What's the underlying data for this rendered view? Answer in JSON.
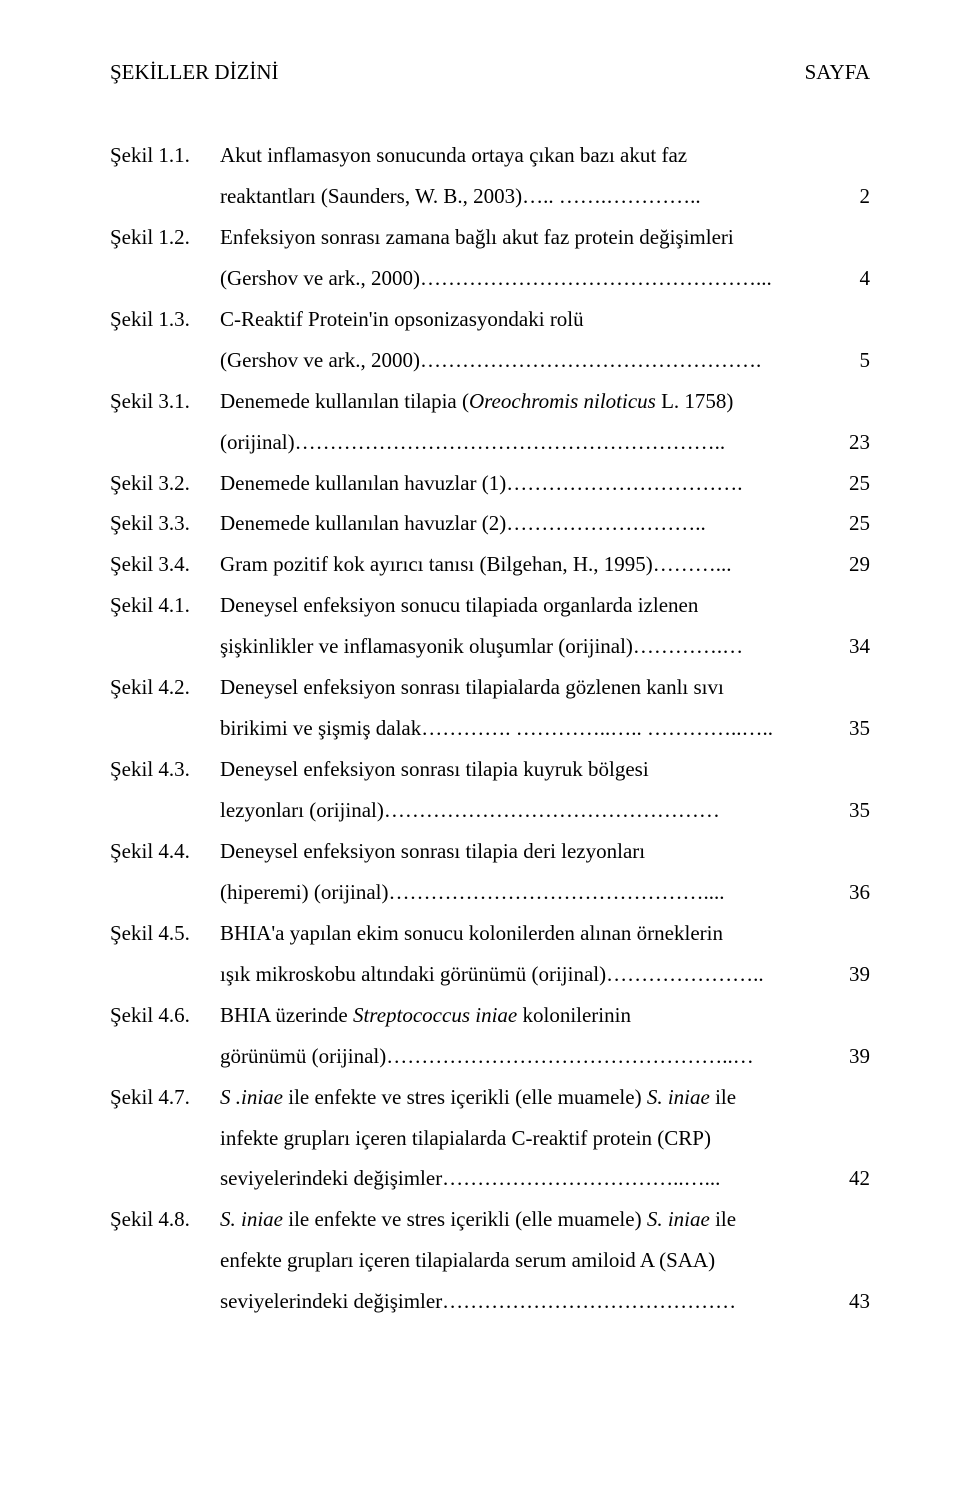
{
  "header": {
    "left": "ŞEKİLLER DİZİNİ",
    "right": "SAYFA"
  },
  "entries": [
    {
      "label": "Şekil 1.1.",
      "lines": [
        {
          "text": "Akut inflamasyon sonucunda ortaya çıkan bazı akut faz",
          "leader": false,
          "page": ""
        },
        {
          "text": "reaktantları (Saunders, W. B., 2003)….. …….…………..",
          "leader": true,
          "leaderCls": "leader-sm",
          "page": "2"
        }
      ]
    },
    {
      "label": "Şekil 1.2.",
      "lines": [
        {
          "text": "Enfeksiyon sonrası zamana bağlı akut faz protein değişimleri",
          "leader": false,
          "page": ""
        },
        {
          "text": "(Gershov ve ark., 2000)…………………………………………...",
          "leader": true,
          "leaderCls": "leader-sm",
          "page": "4"
        }
      ]
    },
    {
      "label": "Şekil 1.3.",
      "lines": [
        {
          "text": "C-Reaktif Protein'in opsonizasyondaki rolü",
          "leader": false,
          "page": ""
        },
        {
          "text": "(Gershov  ve ark., 2000)………………………………………….",
          "leader": true,
          "leaderCls": "leader-sm",
          "page": "5"
        }
      ]
    },
    {
      "label": "Şekil 3.1.",
      "lines": [
        {
          "text_pre": "Denemede kullanılan tilapia (",
          "text_italic": "Oreochromis niloticus",
          "text_post": " L. 1758)",
          "leader": false,
          "page": ""
        },
        {
          "text": "(orijinal)……………………………………………………..",
          "leader": true,
          "page": "23"
        }
      ]
    },
    {
      "label": "Şekil 3.2.",
      "lines": [
        {
          "text": "Denemede kullanılan havuzlar (1)…………………………….",
          "leader": true,
          "page": "25"
        }
      ]
    },
    {
      "label": "Şekil 3.3.",
      "lines": [
        {
          "text": " Denemede kullanılan havuzlar (2)………………………..",
          "leader": true,
          "page": "25"
        }
      ]
    },
    {
      "label": "Şekil 3.4.",
      "lines": [
        {
          "text": " Gram pozitif kok ayırıcı tanısı (Bilgehan, H., 1995)………...",
          "leader": true,
          "page": "29"
        }
      ]
    },
    {
      "label": "Şekil 4.1.",
      "lines": [
        {
          "text": "Deneysel enfeksiyon sonucu tilapiada organlarda izlenen",
          "leader": false,
          "page": ""
        },
        {
          "text": "şişkinlikler ve inflamasyonik oluşumlar (orijinal)………….…",
          "leader": true,
          "leaderCls": "leader-sm",
          "page": "34"
        }
      ]
    },
    {
      "label": "Şekil  4.2.",
      "lines": [
        {
          "text": " Deneysel enfeksiyon sonrası tilapialarda gözlenen kanlı sıvı",
          "leader": false,
          "page": ""
        },
        {
          "text": "birikimi ve şişmiş dalak…………. …………..….. …………..…..",
          "leader": true,
          "leaderCls": "leader-sm",
          "page": "35"
        }
      ]
    },
    {
      "label": "Şekil  4.3.",
      "lines": [
        {
          "text": "Deneysel enfeksiyon sonrası tilapia kuyruk bölgesi",
          "leader": false,
          "page": ""
        },
        {
          "text": "lezyonları (orijinal)…………………………………………",
          "leader": true,
          "page": "35"
        }
      ]
    },
    {
      "label": "Şekil  4.4.",
      "lines": [
        {
          "text": "Deneysel enfeksiyon sonrası tilapia deri lezyonları",
          "leader": false,
          "page": ""
        },
        {
          "text": "(hiperemi)  (orijinal)………………………………………....",
          "leader": true,
          "page": "36"
        }
      ]
    },
    {
      "label": "Şekil  4.5.",
      "lines": [
        {
          "text": "BHIA'a yapılan ekim sonucu kolonilerden alınan örneklerin",
          "leader": false,
          "page": ""
        },
        {
          "text": "ışık mikroskobu altındaki görünümü (orijinal)…………………..",
          "leader": true,
          "leaderCls": "leader-sm",
          "page": "39"
        }
      ]
    },
    {
      "label": "Şekil  4.6.",
      "lines": [
        {
          "text_pre": "BHIA üzerinde ",
          "text_italic": "Streptococcus iniae",
          "text_post": " kolonilerinin",
          "leader": false,
          "page": ""
        },
        {
          "text": "görünümü (orijinal)…………………………………………..…",
          "leader": true,
          "leaderCls": "leader-sm",
          "page": "39"
        }
      ]
    },
    {
      "label": "Şekil  4.7.",
      "lines": [
        {
          "text_pre": " ",
          "text_italic": "S .iniae",
          "text_post_mix": " ile enfekte ve stres içerikli (elle muamele) ",
          "text_italic2": "S. iniae",
          "text_post2": " ile",
          "leader": false,
          "page": ""
        },
        {
          "text": "infekte grupları içeren tilapialarda C-reaktif protein (CRP)",
          "leader": false,
          "page": ""
        },
        {
          "text": "seviyelerindeki değişimler……………………………..…...",
          "leader": true,
          "page": "42"
        }
      ]
    },
    {
      "label": "Şekil  4.8.",
      "lines": [
        {
          "text_pre": " ",
          "text_italic": "S. iniae",
          "text_post_mix": " ile enfekte ve stres içerikli (elle muamele) ",
          "text_italic2": "S. iniae",
          "text_post2": " ile",
          "leader": false,
          "page": ""
        },
        {
          "text": "enfekte grupları içeren tilapialarda serum amiloid A (SAA)",
          "leader": false,
          "page": ""
        },
        {
          "text": "seviyelerindeki değişimler……………………………………",
          "leader": true,
          "leaderCls": "leader-sm",
          "page": "43"
        }
      ]
    }
  ],
  "leaderFill": ""
}
